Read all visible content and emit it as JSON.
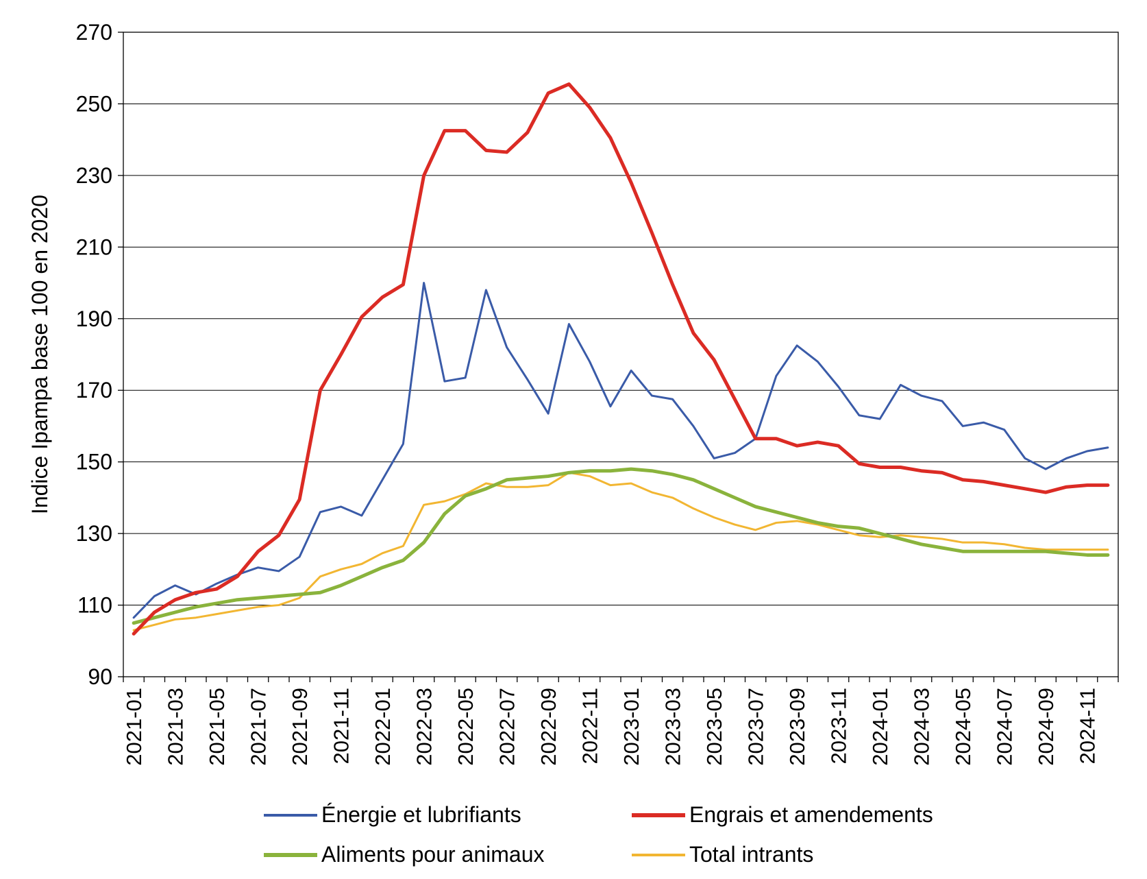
{
  "chart_data": {
    "type": "line",
    "title": "",
    "xlabel": "",
    "ylabel": "Indice Ipampa base 100 en 2020",
    "ylim": [
      90,
      270
    ],
    "yticks": [
      90,
      110,
      130,
      150,
      170,
      190,
      210,
      230,
      250,
      270
    ],
    "grid": "horizontal",
    "legend_position": "bottom",
    "x_tick_labels": [
      "2021-01",
      "2021-03",
      "2021-05",
      "2021-07",
      "2021-09",
      "2021-11",
      "2022-01",
      "2022-03",
      "2022-05",
      "2022-07",
      "2022-09",
      "2022-11",
      "2023-01",
      "2023-03",
      "2023-05",
      "2023-07",
      "2023-09",
      "2023-11",
      "2024-01",
      "2024-03",
      "2024-05",
      "2024-07",
      "2024-09",
      "2024-11"
    ],
    "categories": [
      "2021-01",
      "2021-02",
      "2021-03",
      "2021-04",
      "2021-05",
      "2021-06",
      "2021-07",
      "2021-08",
      "2021-09",
      "2021-10",
      "2021-11",
      "2021-12",
      "2022-01",
      "2022-02",
      "2022-03",
      "2022-04",
      "2022-05",
      "2022-06",
      "2022-07",
      "2022-08",
      "2022-09",
      "2022-10",
      "2022-11",
      "2022-12",
      "2023-01",
      "2023-02",
      "2023-03",
      "2023-04",
      "2023-05",
      "2023-06",
      "2023-07",
      "2023-08",
      "2023-09",
      "2023-10",
      "2023-11",
      "2023-12",
      "2024-01",
      "2024-02",
      "2024-03",
      "2024-04",
      "2024-05",
      "2024-06",
      "2024-07",
      "2024-08",
      "2024-09",
      "2024-10",
      "2024-11",
      "2024-12"
    ],
    "series": [
      {
        "name": "Énergie et lubrifiants",
        "color": "#3a5ba8",
        "width": 3,
        "values": [
          106.5,
          112.5,
          115.5,
          113,
          116,
          118.5,
          120.5,
          119.5,
          123.5,
          136,
          137.5,
          135,
          145,
          155,
          200,
          172.5,
          173.5,
          198,
          182,
          173,
          163.5,
          188.5,
          178,
          165.5,
          175.5,
          168.5,
          167.5,
          160,
          151,
          152.5,
          156.5,
          174,
          182.5,
          178,
          171,
          163,
          162,
          171.5,
          168.5,
          167,
          160,
          161,
          159,
          151,
          148,
          151,
          153,
          154
        ]
      },
      {
        "name": "Engrais et amendements",
        "color": "#db2b24",
        "width": 5,
        "values": [
          102,
          108,
          111.5,
          113.5,
          114.5,
          118,
          125,
          129.5,
          139.5,
          170,
          180,
          190.5,
          196,
          199.5,
          230,
          242.5,
          242.5,
          237,
          236.5,
          242,
          253,
          255.5,
          249,
          240.5,
          228,
          214,
          199.5,
          186,
          178.5,
          167.5,
          156.5,
          156.5,
          154.5,
          155.5,
          154.5,
          149.5,
          148.5,
          148.5,
          147.5,
          147,
          145,
          144.5,
          143.5,
          142.5,
          141.5,
          143,
          143.5,
          143.5
        ]
      },
      {
        "name": "Aliments pour animaux",
        "color": "#8ab33c",
        "width": 5,
        "values": [
          105,
          106.5,
          108,
          109.5,
          110.5,
          111.5,
          112,
          112.5,
          113,
          113.5,
          115.5,
          118,
          120.5,
          122.5,
          127.5,
          135.5,
          140.5,
          142.5,
          145,
          145.5,
          146,
          147,
          147.5,
          147.5,
          148,
          147.5,
          146.5,
          145,
          142.5,
          140,
          137.5,
          136,
          134.5,
          133,
          132,
          131.5,
          130,
          128.5,
          127,
          126,
          125,
          125,
          125,
          125,
          125,
          124.5,
          124,
          124
        ]
      },
      {
        "name": "Total intrants",
        "color": "#f2b632",
        "width": 3,
        "values": [
          103,
          104.5,
          106,
          106.5,
          107.5,
          108.5,
          109.5,
          110,
          112,
          118,
          120,
          121.5,
          124.5,
          126.5,
          138,
          139,
          141,
          144,
          143,
          143,
          143.5,
          147,
          146,
          143.5,
          144,
          141.5,
          140,
          137,
          134.5,
          132.5,
          131,
          133,
          133.5,
          132.5,
          131,
          129.5,
          129,
          129.5,
          129,
          128.5,
          127.5,
          127.5,
          127,
          126,
          125.5,
          125.5,
          125.5,
          125.5
        ]
      }
    ]
  }
}
